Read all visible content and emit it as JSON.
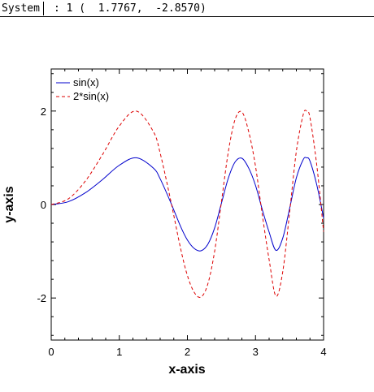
{
  "status": {
    "system_label": "System",
    "coords_text": ": 1 (  1.7767,  -2.8570)"
  },
  "chart_data": {
    "type": "line",
    "title": "",
    "xlabel": "x-axis",
    "ylabel": "y-axis",
    "xlim": [
      0,
      4
    ],
    "ylim": [
      -2.9,
      2.9
    ],
    "xticks": [
      0,
      1,
      2,
      3,
      4
    ],
    "yticks": [
      -2,
      0,
      2
    ],
    "grid": false,
    "legend_position": "top-left",
    "series": [
      {
        "name": "sin(x)",
        "color": "#0000cc",
        "dash": "solid",
        "x": [
          0,
          0.25,
          0.5,
          0.75,
          1.0,
          1.25,
          1.5,
          1.6,
          1.75,
          1.9,
          2.0,
          2.1,
          2.2,
          2.3,
          2.4,
          2.5,
          2.6,
          2.7,
          2.8,
          2.9,
          3.0,
          3.1,
          3.2,
          3.3,
          3.4,
          3.5,
          3.6,
          3.7,
          3.75,
          3.8,
          3.9,
          4.0
        ],
        "y": [
          0,
          0.06,
          0.25,
          0.53,
          0.84,
          1.0,
          0.78,
          0.55,
          0.06,
          -0.47,
          -0.76,
          -0.94,
          -0.99,
          -0.85,
          -0.5,
          0.03,
          0.56,
          0.91,
          0.99,
          0.78,
          0.41,
          -0.11,
          -0.59,
          -0.98,
          -0.72,
          -0.09,
          0.57,
          0.96,
          1.0,
          0.93,
          0.42,
          -0.29
        ]
      },
      {
        "name": "2*sin(x)",
        "color": "#dd0000",
        "dash": "dashed",
        "x": [
          0,
          0.25,
          0.5,
          0.75,
          1.0,
          1.25,
          1.5,
          1.6,
          1.75,
          1.9,
          2.0,
          2.1,
          2.2,
          2.3,
          2.4,
          2.5,
          2.6,
          2.7,
          2.8,
          2.9,
          3.0,
          3.1,
          3.2,
          3.3,
          3.4,
          3.5,
          3.6,
          3.7,
          3.75,
          3.8,
          3.9,
          4.0
        ],
        "y": [
          0,
          0.12,
          0.5,
          1.06,
          1.68,
          2.0,
          1.56,
          1.1,
          0.12,
          -0.94,
          -1.52,
          -1.88,
          -1.98,
          -1.7,
          -1.0,
          0.06,
          1.12,
          1.82,
          1.98,
          1.56,
          0.82,
          -0.22,
          -1.18,
          -1.96,
          -1.44,
          -0.18,
          1.14,
          1.92,
          2.0,
          1.86,
          0.84,
          -0.58
        ]
      }
    ]
  }
}
